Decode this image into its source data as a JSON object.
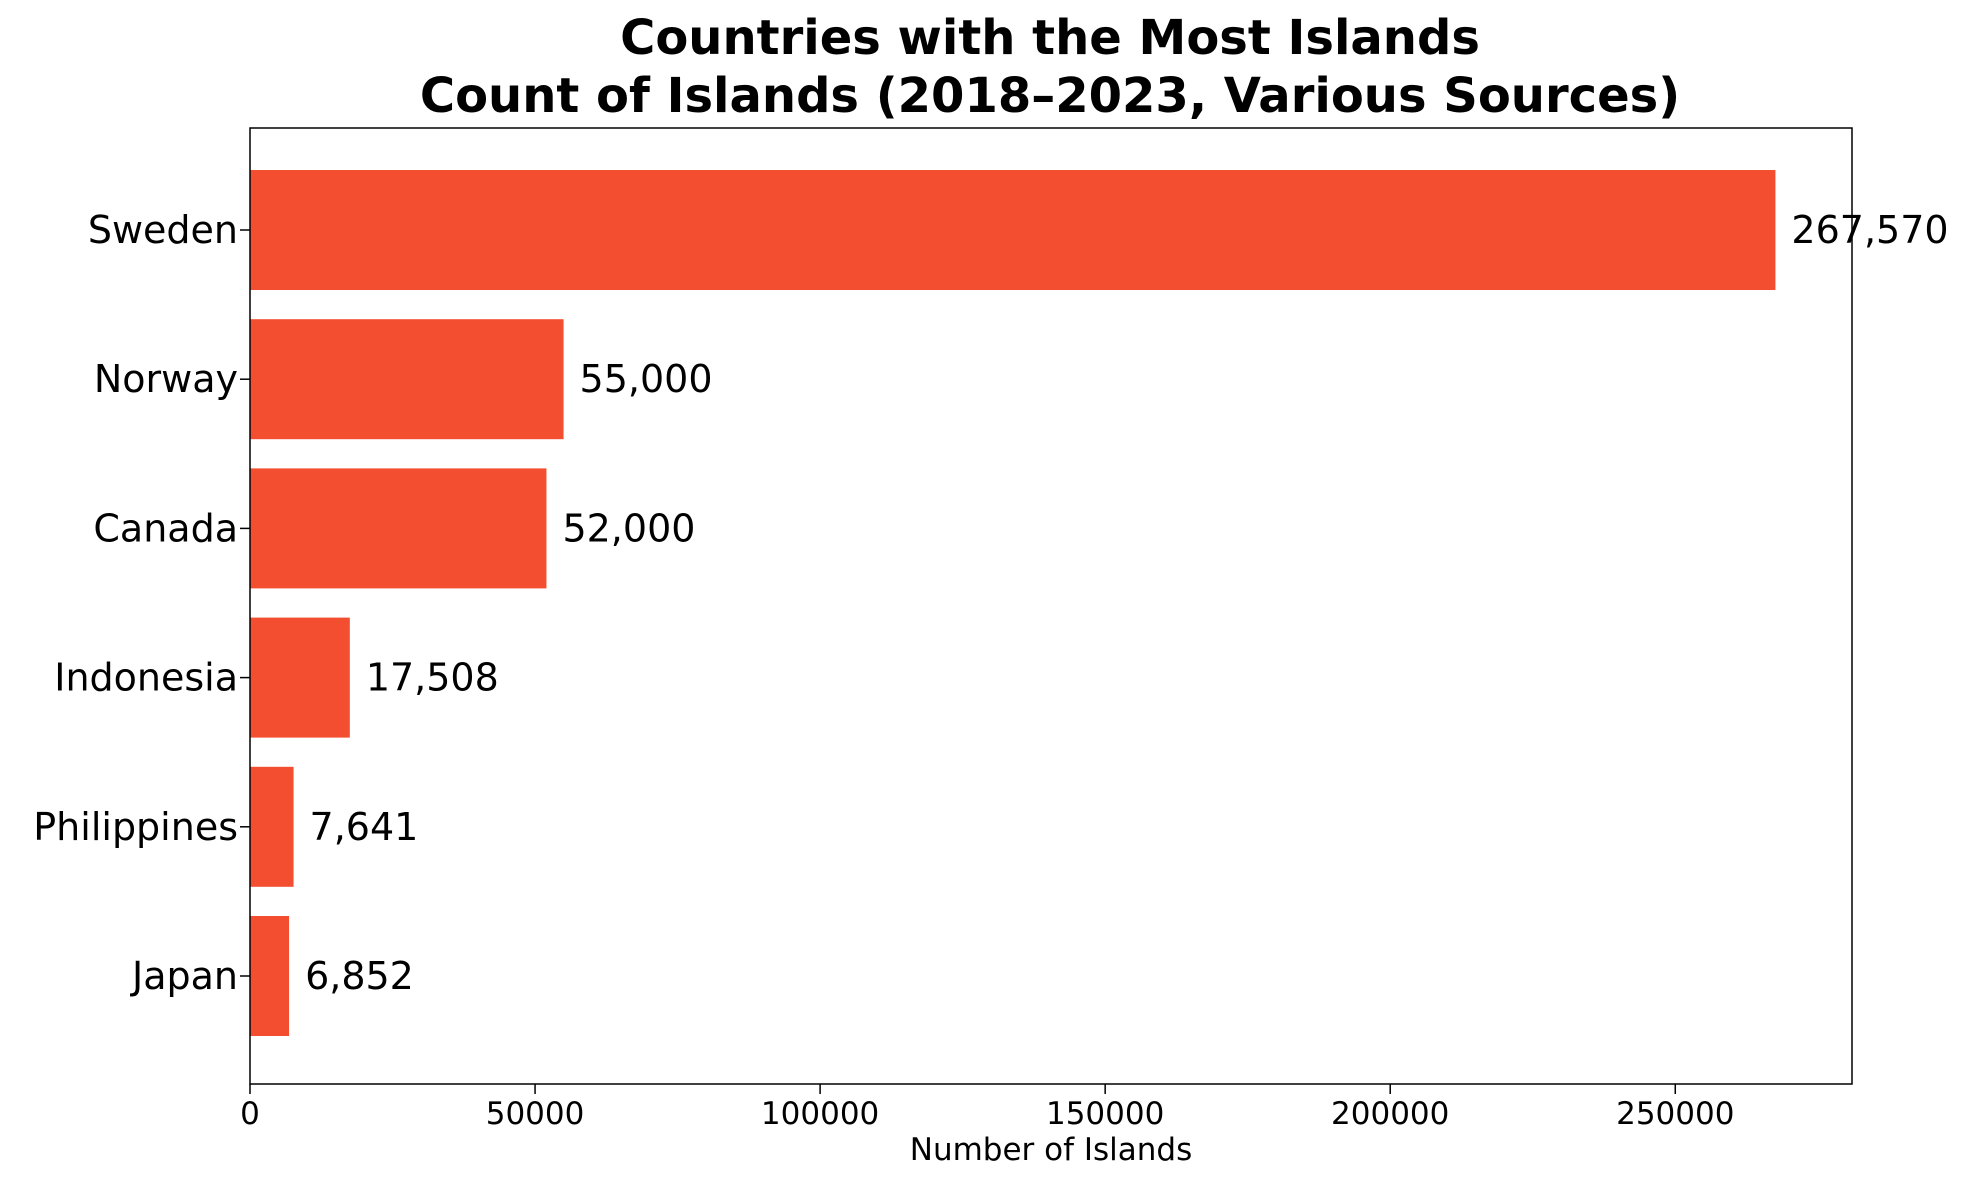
{
  "chart_data": {
    "type": "bar",
    "orientation": "horizontal",
    "title": "Countries with the Most Islands",
    "subtitle": "Count of Islands (2018–2023, Various Sources)",
    "xlabel": "Number of Islands",
    "ylabel": "",
    "xlim": [
      0,
      281000
    ],
    "xticks": [
      0,
      50000,
      100000,
      150000,
      200000,
      250000
    ],
    "xtick_labels": [
      "0",
      "50000",
      "100000",
      "150000",
      "200000",
      "250000"
    ],
    "categories": [
      "Sweden",
      "Norway",
      "Canada",
      "Indonesia",
      "Philippines",
      "Japan"
    ],
    "values": [
      267570,
      55000,
      52000,
      17508,
      7641,
      6852
    ],
    "data_labels": [
      "267,570",
      "55,000",
      "52,000",
      "17,508",
      "7,641",
      "6,852"
    ],
    "bar_color": "#f34e30",
    "grid": false,
    "legend": "none"
  }
}
